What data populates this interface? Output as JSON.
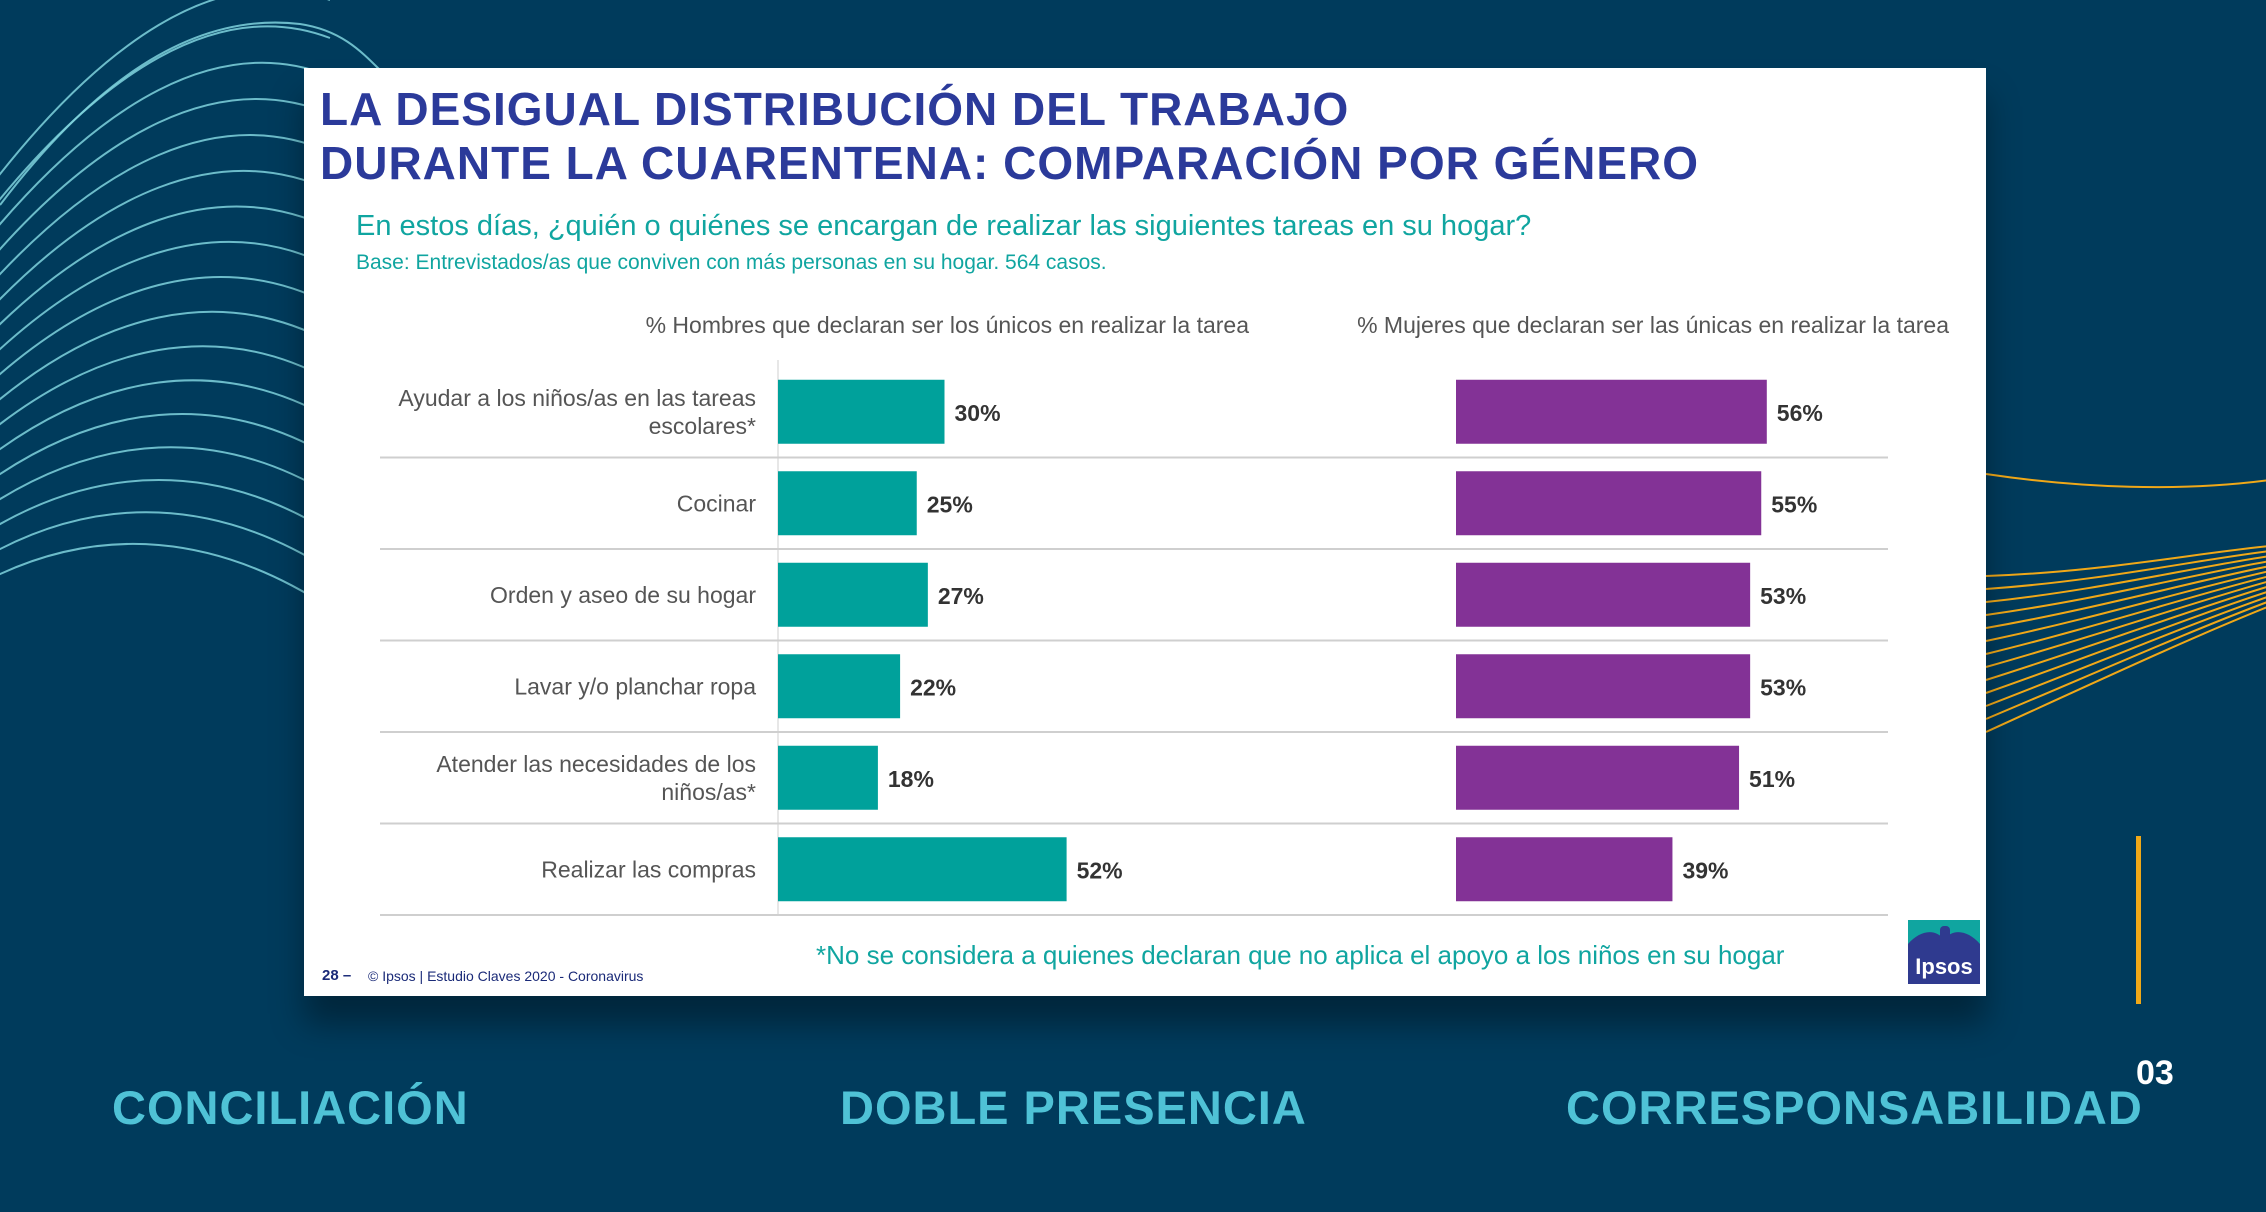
{
  "slide": {
    "title_lines": [
      "LA DESIGUAL DISTRIBUCIÓN DEL TRABAJO",
      "DURANTE LA CUARENTENA: COMPARACIÓN POR GÉNERO"
    ],
    "question": "En estos días, ¿quién o quiénes se encargan de realizar las siguientes tareas en su hogar?",
    "base": "Base: Entrevistados/as que conviven con más personas en su hogar. 564 casos.",
    "footnote": "*No se considera a quienes declaran que no aplica el apoyo a los niños en su hogar",
    "page_number": "28 –",
    "copyright": "© Ipsos | Estudio Claves 2020 - Coronavirus",
    "logo_text": "Ipsos"
  },
  "chart_data": {
    "type": "bar",
    "orientation": "horizontal",
    "categories": [
      [
        "Ayudar a los niños/as en las tareas",
        "escolares*"
      ],
      [
        "Cocinar"
      ],
      [
        "Orden y aseo de su hogar"
      ],
      [
        "Lavar y/o planchar ropa"
      ],
      [
        "Atender las necesidades de los",
        "niños/as*"
      ],
      [
        "Realizar las compras"
      ]
    ],
    "series": [
      {
        "name": "% Hombres que declaran ser los únicos en realizar la tarea",
        "values": [
          30,
          25,
          27,
          22,
          18,
          52
        ],
        "color": "#00a19b"
      },
      {
        "name": "% Mujeres que declaran ser las únicas en realizar la tarea",
        "values": [
          56,
          55,
          53,
          53,
          51,
          39
        ],
        "color": "#833296"
      }
    ],
    "value_suffix": "%"
  },
  "bottom_labels": [
    "CONCILIACIÓN",
    "DOBLE PRESENCIA",
    "CORRESPONSABILIDAD"
  ],
  "slide_number": "03",
  "colors": {
    "background": "#003b5c",
    "accent_lines": "#f0a818",
    "cyan_lines": "#7fd3dd",
    "label": "#4fc2d6",
    "title": "#2b3a9a",
    "teal": "#10a5a0"
  }
}
